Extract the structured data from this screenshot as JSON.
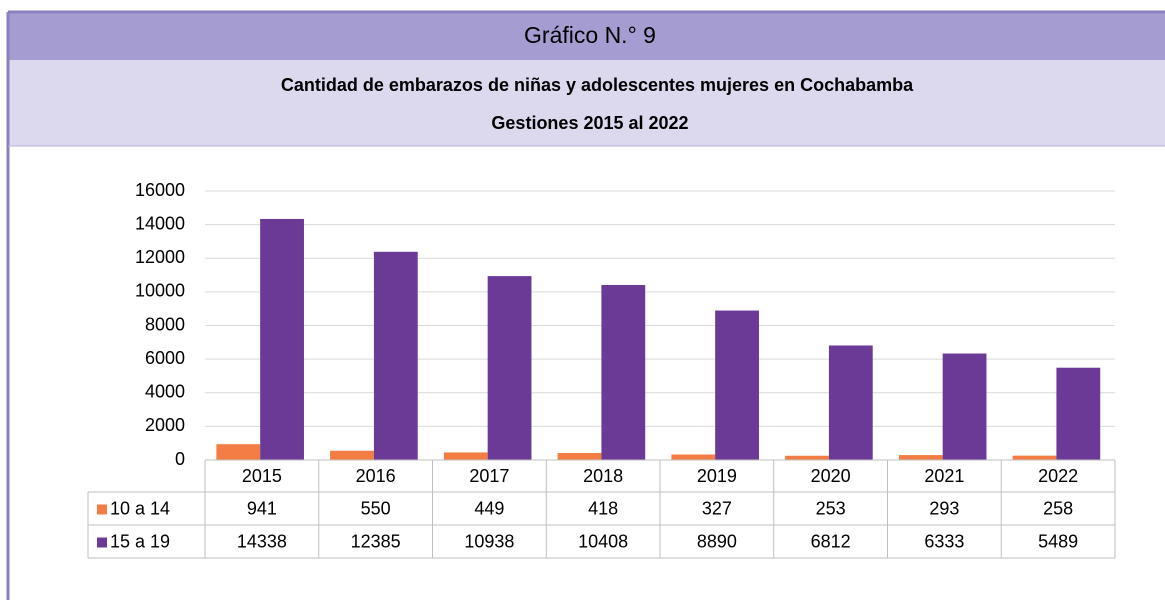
{
  "chart_data": {
    "type": "bar",
    "title": "Gráfico N.° 9",
    "subtitle": [
      "Cantidad de embarazos de niñas y adolescentes mujeres en Cochabamba",
      "Gestiones 2015 al 2022"
    ],
    "categories": [
      "2015",
      "2016",
      "2017",
      "2018",
      "2019",
      "2020",
      "2021",
      "2022"
    ],
    "series": [
      {
        "name": "10 a 14",
        "color": "#f47d45",
        "values": [
          941,
          550,
          449,
          418,
          327,
          253,
          293,
          258
        ]
      },
      {
        "name": "15 a 19",
        "color": "#6a3a96",
        "values": [
          14338,
          12385,
          10938,
          10408,
          8890,
          6812,
          6333,
          5489
        ]
      }
    ],
    "ylim": [
      0,
      16000
    ],
    "yticks": [
      0,
      2000,
      4000,
      6000,
      8000,
      10000,
      12000,
      14000,
      16000
    ],
    "grid": true
  }
}
